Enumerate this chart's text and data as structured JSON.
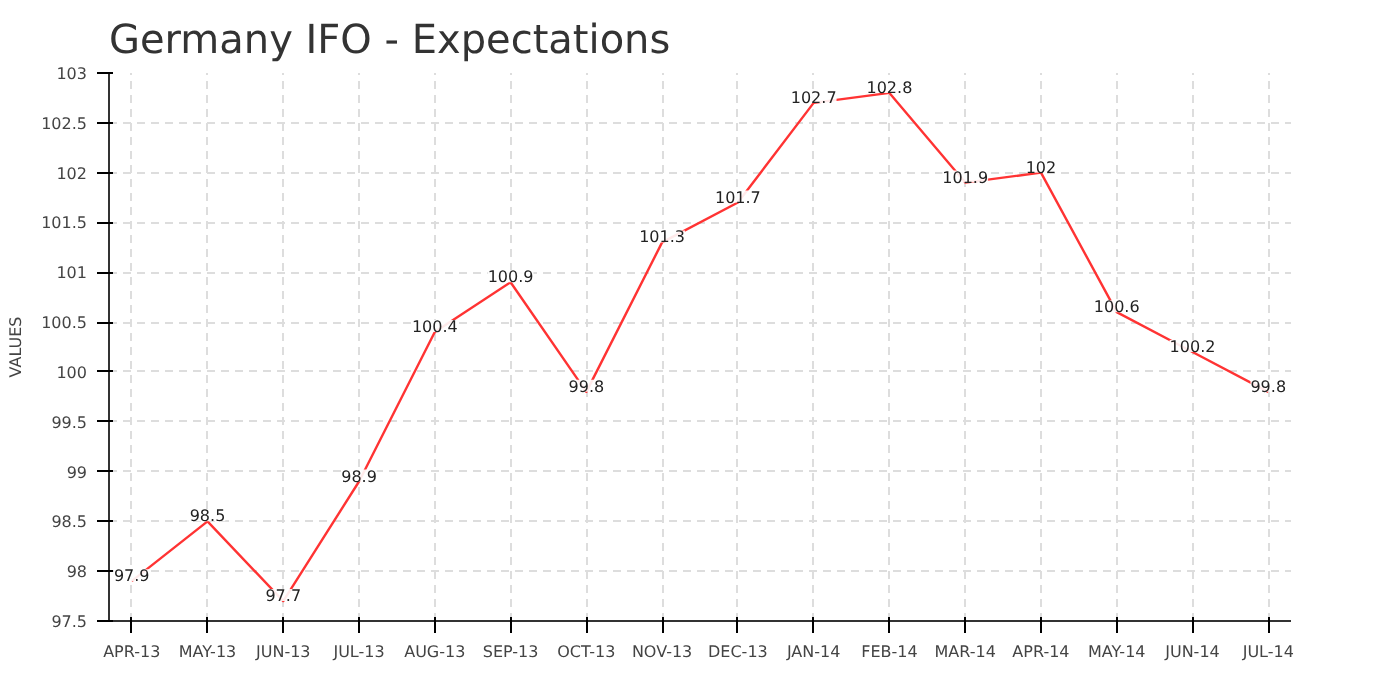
{
  "chart_data": {
    "type": "line",
    "title": "Germany IFO - Expectations",
    "ylabel": "VALUES",
    "categories": [
      "APR-13",
      "MAY-13",
      "JUN-13",
      "JUL-13",
      "AUG-13",
      "SEP-13",
      "OCT-13",
      "NOV-13",
      "DEC-13",
      "JAN-14",
      "FEB-14",
      "MAR-14",
      "APR-14",
      "MAY-14",
      "JUN-14",
      "JUL-14"
    ],
    "series": [
      {
        "color": "#ff3333",
        "values": [
          97.9,
          98.5,
          97.7,
          98.9,
          100.4,
          100.9,
          99.8,
          101.3,
          101.7,
          102.7,
          102.8,
          101.9,
          102,
          100.6,
          100.2,
          99.8
        ]
      }
    ],
    "ylim": [
      97.5,
      103
    ],
    "yticks": [
      97.5,
      98,
      98.5,
      99,
      99.5,
      100,
      100.5,
      101,
      101.5,
      102,
      102.5,
      103
    ],
    "grid": true,
    "data_labels": true,
    "marker": "none",
    "line_style": "solid"
  }
}
